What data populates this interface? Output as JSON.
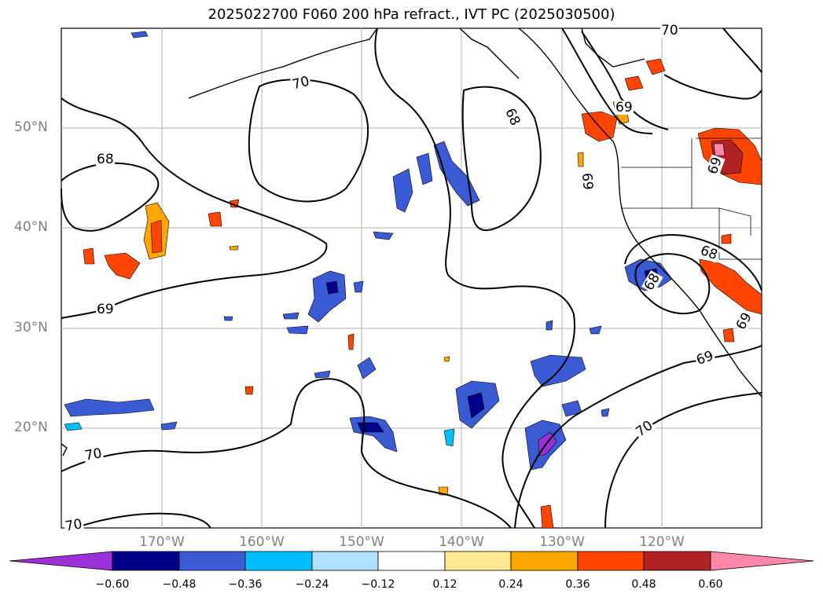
{
  "title": "2025022700 F060 200 hPa refract., IVT PC (2025030500)",
  "map": {
    "lat_labels": [
      "50°N",
      "40°N",
      "30°N",
      "20°N"
    ],
    "lon_labels": [
      "170°W",
      "160°W",
      "150°W",
      "140°W",
      "130°W",
      "120°W"
    ],
    "contour_labels": [
      "70",
      "68",
      "69",
      "70",
      "68",
      "69",
      "69",
      "69",
      "68",
      "68",
      "69",
      "70",
      "70",
      "70",
      "69"
    ]
  },
  "colorbar": {
    "ticks": [
      "−0.60",
      "−0.48",
      "−0.36",
      "−0.24",
      "−0.12",
      "0.12",
      "0.24",
      "0.36",
      "0.48",
      "0.60"
    ],
    "colors": [
      "#9b30d8",
      "#00008b",
      "#3a5bd4",
      "#00bfff",
      "#b0e0ff",
      "#ffffff",
      "#ffe890",
      "#ffa500",
      "#ff4500",
      "#b22222",
      "#ff88aa"
    ]
  }
}
